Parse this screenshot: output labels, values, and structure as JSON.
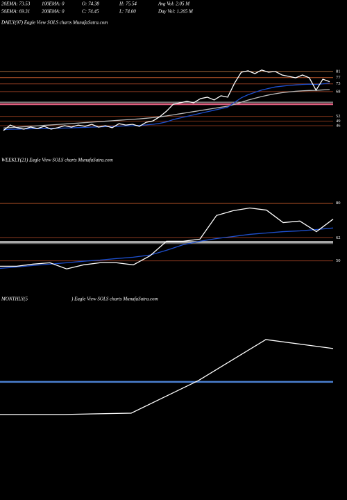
{
  "header": {
    "rows": [
      [
        "20EMA: 73.53",
        "100EMA: 0",
        "O: 74.38",
        "H: 75.54",
        "Avg Vol: 2.05 M"
      ],
      [
        "50EMA: 69.31",
        "200EMA: 0",
        "C: 74.45",
        "L: 74.00",
        "Day Vol: 1.265 M"
      ]
    ]
  },
  "chart_data": [
    {
      "type": "line",
      "title": "DAILY(97) Eagle View SOLS charts MunafaSutra.com",
      "ylim": [
        37.5,
        89
      ],
      "yticks": [
        81,
        77,
        73,
        68,
        52,
        49,
        46
      ],
      "tick_colors": [
        "#a86a3a",
        "#c0582a",
        "#8b3a20",
        "#8b3a20",
        "#7a3018",
        "#7a3018",
        "#7a3018"
      ],
      "levels": [
        {
          "value": 59.9,
          "color": "#e06080"
        },
        {
          "value": 61.2,
          "color": "#cccccc"
        }
      ],
      "series": [
        {
          "color": "#bbbbbb",
          "values": [
            44.5,
            44.8,
            45.0,
            45.3,
            45.6,
            45.9,
            46.2,
            46.5,
            46.8,
            47.1,
            47.4,
            47.7,
            48.0,
            48.3,
            48.6,
            48.9,
            49.2,
            49.5,
            49.8,
            50.1,
            50.4,
            50.8,
            51.2,
            51.7,
            52.3,
            53.0,
            53.7,
            54.4,
            55.1,
            55.8,
            56.5,
            57.2,
            57.9,
            58.6,
            59.8,
            61.2,
            62.5,
            63.7,
            64.8,
            65.8,
            66.6,
            67.3,
            67.8,
            68.2,
            68.5,
            68.7,
            68.8,
            69.1,
            69.3
          ]
        },
        {
          "color": "#1e50d0",
          "values": [
            43.5,
            43.7,
            43.8,
            43.9,
            44.0,
            44.1,
            44.2,
            44.3,
            44.4,
            44.5,
            44.6,
            44.8,
            44.9,
            45.1,
            45.2,
            45.4,
            45.5,
            45.7,
            45.9,
            46.0,
            46.2,
            46.5,
            46.9,
            47.5,
            48.5,
            50.0,
            51.0,
            52.0,
            53.0,
            54.0,
            55.0,
            56.0,
            57.0,
            58.0,
            61.0,
            64.0,
            66.0,
            67.5,
            69.0,
            70.0,
            71.0,
            71.5,
            72.0,
            72.3,
            72.6,
            72.8,
            72.6,
            73.0,
            73.5
          ]
        },
        {
          "color": "#ffffff",
          "values": [
            42.9,
            46.4,
            44.7,
            43.8,
            45.1,
            44.2,
            45.6,
            43.8,
            44.7,
            46.0,
            45.1,
            46.4,
            45.6,
            46.9,
            45.1,
            46.0,
            44.7,
            47.3,
            46.4,
            46.9,
            45.6,
            48.2,
            49.1,
            51.8,
            55.4,
            59.9,
            60.8,
            61.7,
            60.8,
            63.5,
            64.4,
            62.6,
            65.3,
            64.4,
            73.4,
            80.5,
            81.4,
            79.6,
            81.9,
            80.5,
            81.0,
            78.7,
            77.8,
            76.9,
            78.7,
            76.9,
            68.9,
            76.0,
            74.4
          ]
        }
      ]
    },
    {
      "type": "line",
      "title": "WEEKLY(21) Eagle View SOLS charts MunafaSutra.com",
      "ylim": [
        43,
        99
      ],
      "yticks": [
        80,
        62,
        50
      ],
      "tick_colors": [
        "#c0582a",
        "#8b3a20",
        "#8b3a20"
      ],
      "levels": [
        {
          "value": 59.8,
          "color": "#cccccc"
        },
        {
          "value": 59,
          "color": "#888888"
        }
      ],
      "series": [
        {
          "color": "#1e50d0",
          "values": [
            46.1,
            46.8,
            47.6,
            48.3,
            49.0,
            49.8,
            50.4,
            51.2,
            51.9,
            53.0,
            55.5,
            58.4,
            60.2,
            61.6,
            62.7,
            63.8,
            64.5,
            65.2,
            65.6,
            66.3,
            67.1
          ]
        },
        {
          "color": "#ffffff",
          "values": [
            47.2,
            47.2,
            48.3,
            49.0,
            45.8,
            47.9,
            49.0,
            49.0,
            47.9,
            52.6,
            60.2,
            60.2,
            61.3,
            73.6,
            76.1,
            77.5,
            76.4,
            69.9,
            70.7,
            65.2,
            71.7
          ]
        }
      ]
    },
    {
      "type": "line",
      "title": "MONTHLY(5",
      "subtitle": ") Eagle View SOLS charts MunafaSutra.com",
      "ylim": [
        31.6,
        87.5
      ],
      "levels": [
        {
          "value": 59.6,
          "color": "#4a7fd0"
        }
      ],
      "series": [
        {
          "color": "#ffffff",
          "values": [
            45.0,
            45.6,
            60.2,
            78.5,
            74.5
          ]
        }
      ]
    }
  ]
}
